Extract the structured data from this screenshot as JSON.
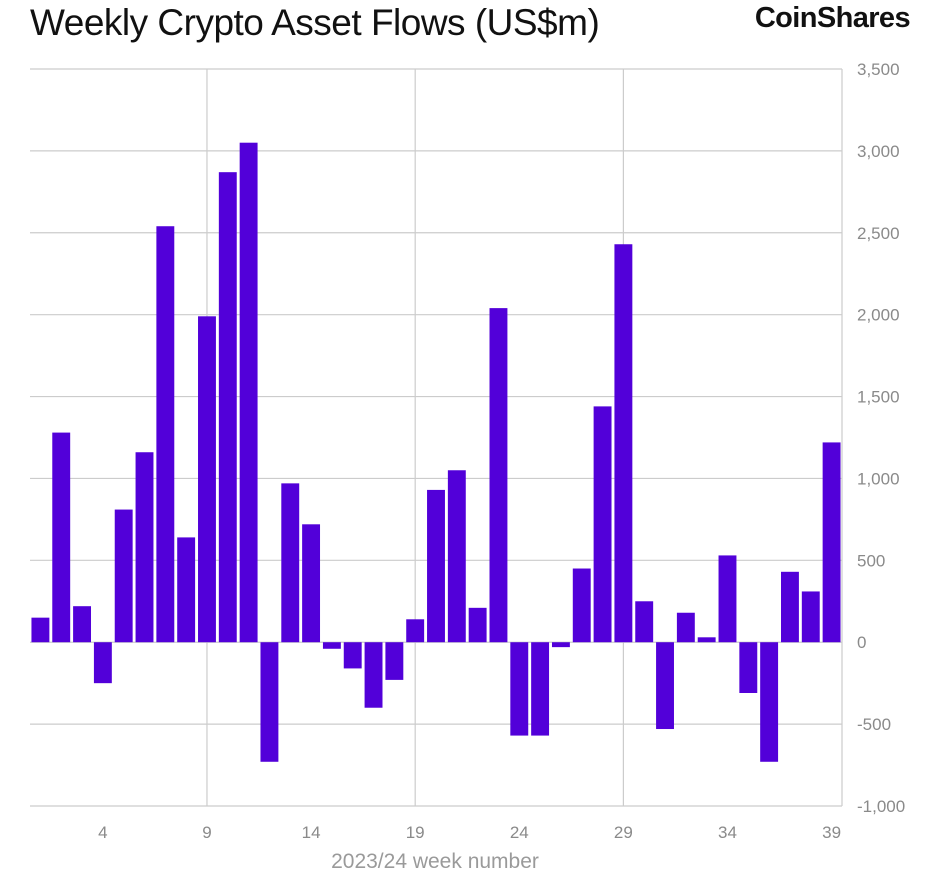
{
  "header": {
    "title": "Weekly Crypto Asset Flows (US$m)",
    "brand": "CoinShares"
  },
  "chart_data": {
    "type": "bar",
    "title": "Weekly Crypto Asset Flows (US$m)",
    "xlabel": "2023/24 week number",
    "ylabel": "",
    "ylim": [
      -1000,
      3500
    ],
    "y_ticks": [
      3500,
      3000,
      2500,
      2000,
      1500,
      1000,
      500,
      0,
      -500,
      -1000
    ],
    "y_tick_labels": [
      "3,500",
      "3,000",
      "2,500",
      "2,000",
      "1,500",
      "1,000",
      "500",
      "0",
      "-500",
      "-1,000"
    ],
    "x_ticks": [
      4,
      9,
      14,
      19,
      24,
      29,
      34,
      39
    ],
    "x_tick_labels": [
      "4",
      "9",
      "14",
      "19",
      "24",
      "29",
      "34",
      "39"
    ],
    "x_gridlines_at": [
      9,
      19,
      29
    ],
    "y_axis_position": "right",
    "grid": true,
    "legend": "none",
    "bar_color": "#5200d9",
    "categories": [
      1,
      2,
      3,
      4,
      5,
      6,
      7,
      8,
      9,
      10,
      11,
      12,
      13,
      14,
      15,
      16,
      17,
      18,
      19,
      20,
      21,
      22,
      23,
      24,
      25,
      26,
      27,
      28,
      29,
      30,
      31,
      32,
      33,
      34,
      35,
      36,
      37,
      38,
      39
    ],
    "values": [
      150,
      1280,
      220,
      -250,
      810,
      1160,
      2540,
      640,
      1990,
      2870,
      3050,
      -730,
      970,
      720,
      -40,
      -160,
      -400,
      -230,
      140,
      930,
      1050,
      210,
      2040,
      -570,
      -570,
      -30,
      450,
      1440,
      2430,
      250,
      -530,
      180,
      30,
      530,
      -310,
      -730,
      430,
      310,
      1220
    ]
  }
}
